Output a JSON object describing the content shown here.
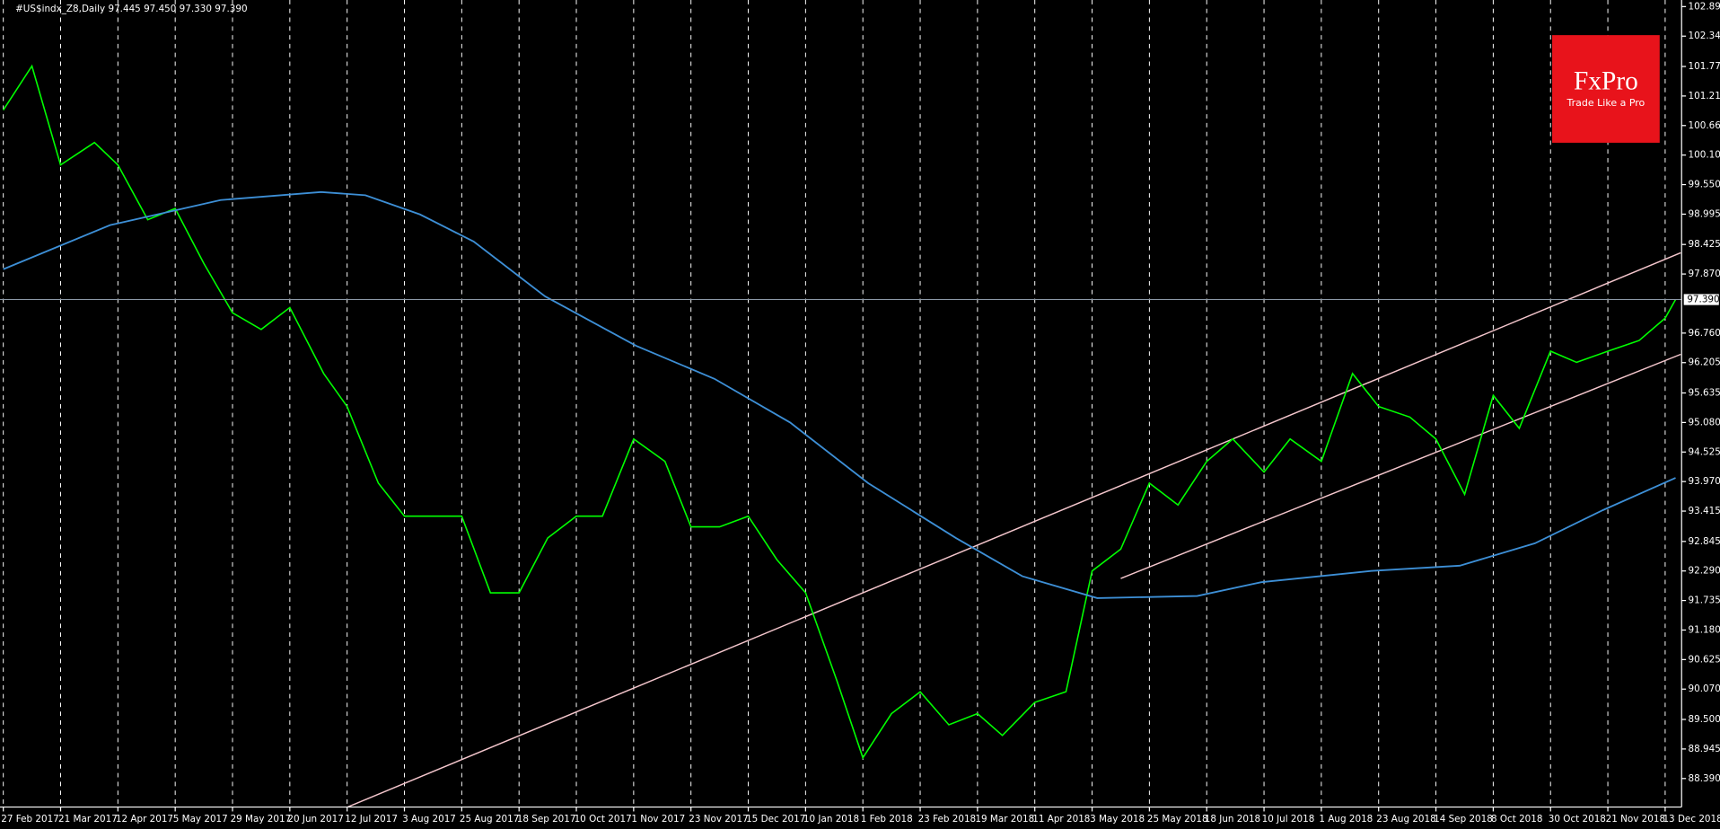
{
  "chart_data": {
    "type": "line",
    "title": "#US$indx_Z8,Daily  97.445 97.450 97.330 97.390",
    "ylim": [
      87.854,
      103.019
    ],
    "yticks": [
      102.895,
      102.34,
      {
        "value": 101.77,
        "label": "101.770"
      },
      101.215,
      {
        "value": 100.66,
        "label": "100.660"
      },
      100.105,
      {
        "value": 99.55,
        "label": "99.550"
      },
      98.995,
      98.425,
      {
        "value": 97.87,
        "label": "97.870"
      },
      {
        "value": 96.76,
        "label": "96.760"
      },
      96.205,
      95.635,
      {
        "value": 95.08,
        "label": "95.080"
      },
      94.525,
      {
        "value": 93.97,
        "label": "93.970"
      },
      93.415,
      92.845,
      {
        "value": 92.29,
        "label": "92.290"
      },
      91.735,
      {
        "value": 91.18,
        "label": "91.180"
      },
      90.625,
      {
        "value": 90.07,
        "label": "90.070"
      },
      {
        "value": 89.5,
        "label": "89.500"
      },
      88.945,
      {
        "value": 88.39,
        "label": "88.390"
      }
    ],
    "xticks": [
      {
        "value": "2017-02-27",
        "label": "27 Feb 2017"
      },
      {
        "value": "2017-03-21",
        "label": "21 Mar 2017"
      },
      {
        "value": "2017-04-12",
        "label": "12 Apr 2017"
      },
      {
        "value": "2017-05-05",
        "label": "5 May 2017"
      },
      {
        "value": "2017-05-29",
        "label": "29 May 2017"
      },
      {
        "value": "2017-06-20",
        "label": "20 Jun 2017"
      },
      {
        "value": "2017-07-12",
        "label": "12 Jul 2017"
      },
      {
        "value": "2017-08-03",
        "label": "3 Aug 2017"
      },
      {
        "value": "2017-08-25",
        "label": "25 Aug 2017"
      },
      {
        "value": "2017-09-18",
        "label": "18 Sep 2017"
      },
      {
        "value": "2017-10-10",
        "label": "10 Oct 2017"
      },
      {
        "value": "2017-11-01",
        "label": "1 Nov 2017"
      },
      {
        "value": "2017-11-23",
        "label": "23 Nov 2017"
      },
      {
        "value": "2017-12-15",
        "label": "15 Dec 2017"
      },
      {
        "value": "2018-01-10",
        "label": "10 Jan 2018"
      },
      {
        "value": "2018-02-01",
        "label": "1 Feb 2018"
      },
      {
        "value": "2018-02-23",
        "label": "23 Feb 2018"
      },
      {
        "value": "2018-03-19",
        "label": "19 Mar 2018"
      },
      {
        "value": "2018-04-11",
        "label": "11 Apr 2018"
      },
      {
        "value": "2018-05-03",
        "label": "3 May 2018"
      },
      {
        "value": "2018-05-25",
        "label": "25 May 2018"
      },
      {
        "value": "2018-06-18",
        "label": "18 Jun 2018"
      },
      {
        "value": "2018-07-10",
        "label": "10 Jul 2018"
      },
      {
        "value": "2018-08-01",
        "label": "1 Aug 2018"
      },
      {
        "value": "2018-08-23",
        "label": "23 Aug 2018"
      },
      {
        "value": "2018-09-14",
        "label": "14 Sep 2018"
      },
      {
        "value": "2018-10-08",
        "label": "8 Oct 2018"
      },
      {
        "value": "2018-10-30",
        "label": "30 Oct 2018"
      },
      {
        "value": "2018-11-21",
        "label": "21 Nov 2018"
      },
      {
        "value": "2018-12-13",
        "label": "13 Dec 2018"
      }
    ],
    "grid": true,
    "series": [
      {
        "color": "#00ff00",
        "x": [
          "2017-02-27",
          "2017-03-10",
          "2017-03-21",
          "2017-04-03",
          "2017-04-12",
          "2017-04-24",
          "2017-05-05",
          "2017-05-17",
          "2017-05-29",
          "2017-06-09",
          "2017-06-20",
          "2017-07-03",
          "2017-07-12",
          "2017-07-24",
          "2017-08-03",
          "2017-08-14",
          "2017-08-25",
          "2017-09-06",
          "2017-09-18",
          "2017-09-29",
          "2017-10-10",
          "2017-10-20",
          "2017-11-01",
          "2017-11-13",
          "2017-11-23",
          "2017-12-04",
          "2017-12-15",
          "2017-12-28",
          "2018-01-10",
          "2018-01-22",
          "2018-02-01",
          "2018-02-12",
          "2018-02-23",
          "2018-03-07",
          "2018-03-19",
          "2018-03-29",
          "2018-04-11",
          "2018-04-23",
          "2018-05-03",
          "2018-05-14",
          "2018-05-25",
          "2018-06-06",
          "2018-06-18",
          "2018-06-28",
          "2018-07-10",
          "2018-07-20",
          "2018-08-01",
          "2018-08-13",
          "2018-08-23",
          "2018-09-04",
          "2018-09-14",
          "2018-09-26",
          "2018-10-08",
          "2018-10-18",
          "2018-10-30",
          "2018-11-09",
          "2018-11-21",
          "2018-12-03",
          "2018-12-13",
          "2018-12-17"
        ],
        "values": [
          100.95,
          101.78,
          99.92,
          100.34,
          99.92,
          98.89,
          99.1,
          98.07,
          97.14,
          96.83,
          97.24,
          96.0,
          95.38,
          93.94,
          93.32,
          93.32,
          93.32,
          91.88,
          91.88,
          92.91,
          93.32,
          93.32,
          94.77,
          94.35,
          93.12,
          93.12,
          93.32,
          92.5,
          91.88,
          90.23,
          88.78,
          89.61,
          90.02,
          89.4,
          89.61,
          89.2,
          89.82,
          90.02,
          92.29,
          92.7,
          93.94,
          93.53,
          94.35,
          94.77,
          94.15,
          94.77,
          94.35,
          96.0,
          95.38,
          95.18,
          94.77,
          93.73,
          95.59,
          94.97,
          96.42,
          96.21,
          96.42,
          96.62,
          97.04,
          97.39
        ]
      },
      {
        "color": "#3d8fd6",
        "x": [
          "2017-02-27",
          "2017-04-09",
          "2017-05-24",
          "2017-07-02",
          "2017-07-19",
          "2017-08-09",
          "2017-08-30",
          "2017-09-28",
          "2017-11-02",
          "2017-12-02",
          "2018-01-03",
          "2018-02-03",
          "2018-03-10",
          "2018-04-06",
          "2018-05-05",
          "2018-06-14",
          "2018-07-09",
          "2018-08-20",
          "2018-09-24",
          "2018-10-24",
          "2018-11-19",
          "2018-12-17"
        ],
        "values": [
          97.96,
          98.79,
          99.26,
          99.41,
          99.35,
          98.99,
          98.48,
          97.45,
          96.52,
          95.9,
          95.08,
          93.94,
          92.91,
          92.19,
          91.78,
          91.82,
          92.08,
          92.29,
          92.39,
          92.81,
          93.43,
          94.04
        ]
      }
    ],
    "trend_lines": [
      {
        "color": "#f4c6cc",
        "x": [
          "2017-07-12",
          "2018-12-19"
        ],
        "values": [
          87.85,
          98.27
        ]
      },
      {
        "color": "#f4c6cc",
        "x": [
          "2018-05-14",
          "2018-12-19"
        ],
        "values": [
          92.15,
          96.36
        ]
      }
    ],
    "price_line": {
      "value": 97.39,
      "label": "97.390",
      "color": "#8d9aa8"
    }
  },
  "logo": {
    "brand": "FxPro",
    "tagline": "Trade Like a Pro"
  }
}
